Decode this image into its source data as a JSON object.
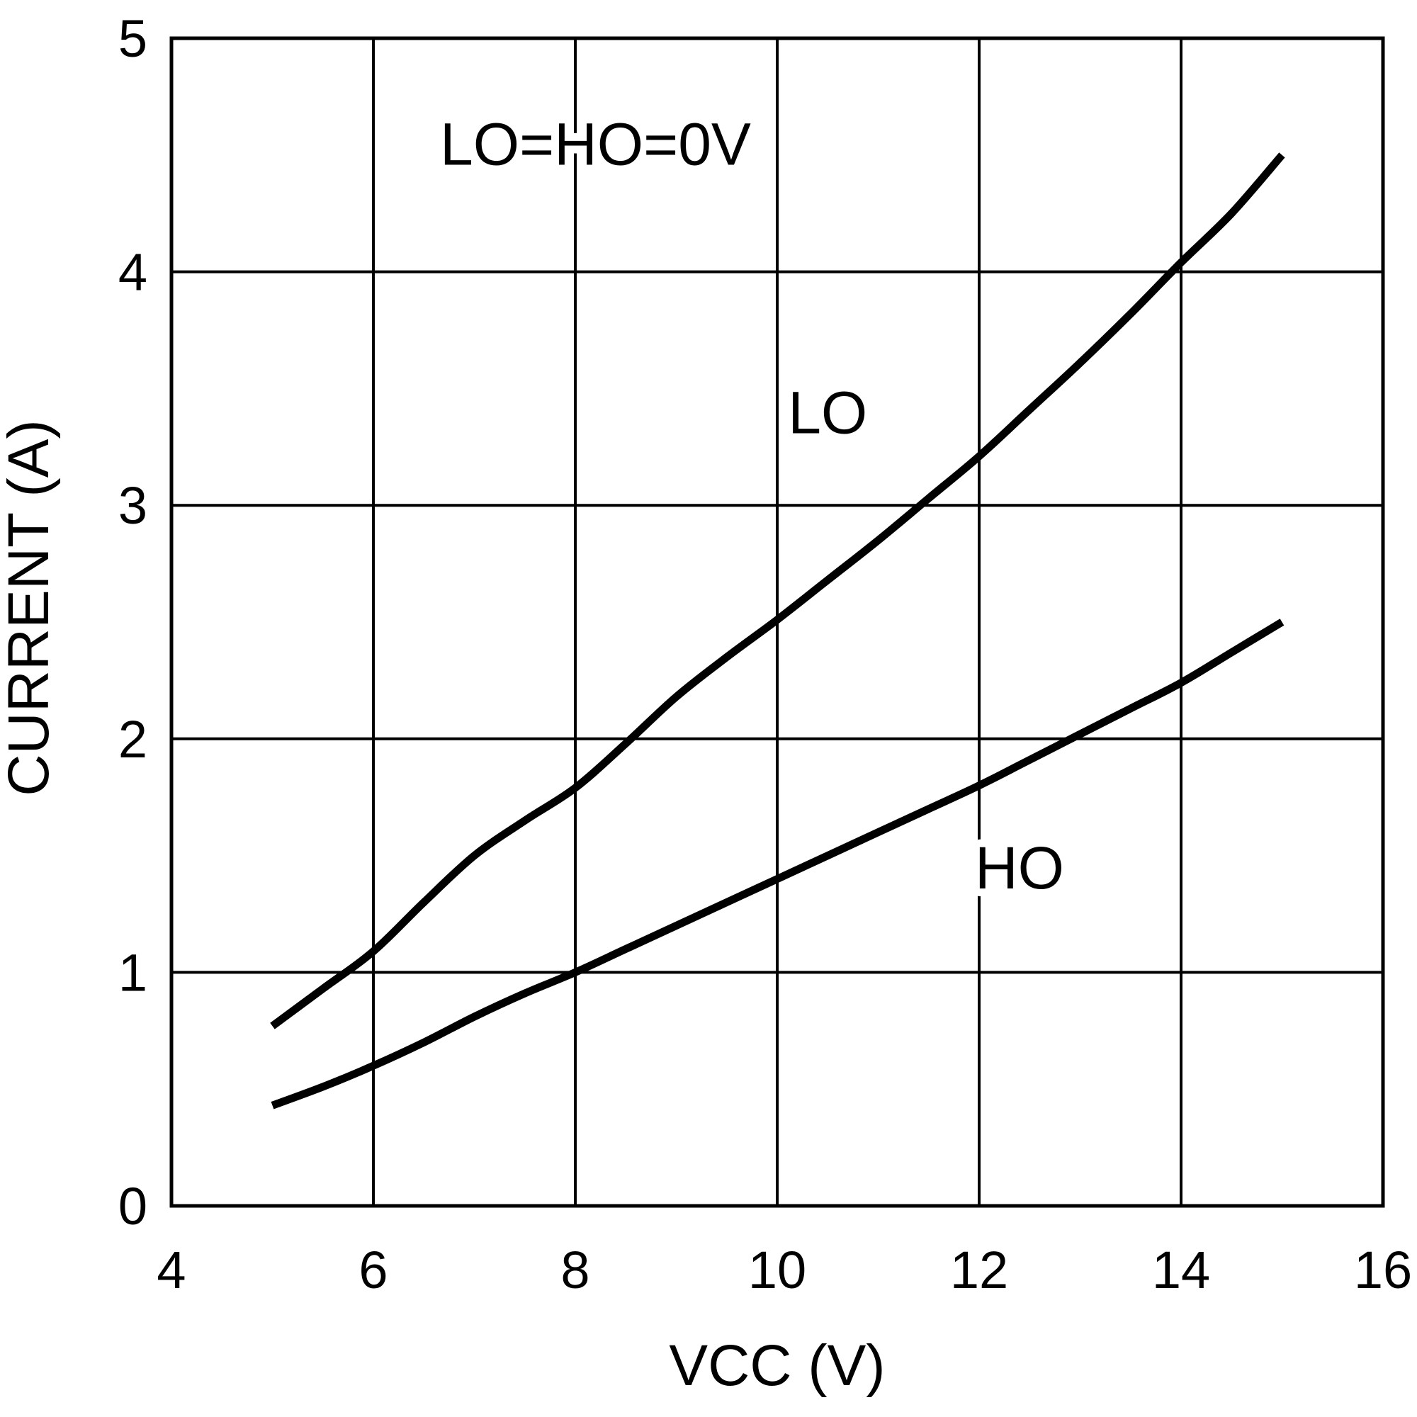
{
  "chart_data": {
    "type": "line",
    "title": "",
    "xlabel": "VCC (V)",
    "ylabel": "CURRENT (A)",
    "xlim": [
      4,
      16
    ],
    "ylim": [
      0,
      5
    ],
    "xticks": [
      4,
      6,
      8,
      10,
      12,
      14,
      16
    ],
    "yticks": [
      0,
      1,
      2,
      3,
      4,
      5
    ],
    "grid": true,
    "series": [
      {
        "name": "LO",
        "x": [
          5,
          5.5,
          6,
          6.5,
          7,
          7.5,
          8,
          8.5,
          9,
          9.5,
          10,
          10.5,
          11,
          11.5,
          12,
          12.5,
          13,
          13.5,
          14,
          14.5,
          15
        ],
        "values": [
          0.77,
          0.93,
          1.09,
          1.3,
          1.5,
          1.65,
          1.79,
          1.98,
          2.18,
          2.35,
          2.51,
          2.68,
          2.85,
          3.03,
          3.21,
          3.41,
          3.61,
          3.82,
          4.04,
          4.25,
          4.5
        ]
      },
      {
        "name": "HO",
        "x": [
          5,
          5.5,
          6,
          6.5,
          7,
          7.5,
          8,
          8.5,
          9,
          9.5,
          10,
          10.5,
          11,
          11.5,
          12,
          12.5,
          13,
          13.5,
          14,
          14.5,
          15
        ],
        "values": [
          0.43,
          0.51,
          0.6,
          0.7,
          0.81,
          0.91,
          1.0,
          1.1,
          1.2,
          1.3,
          1.4,
          1.5,
          1.6,
          1.7,
          1.8,
          1.91,
          2.02,
          2.13,
          2.24,
          2.37,
          2.5
        ]
      }
    ],
    "annotations": [
      {
        "text": "LO=HO=0V",
        "x": 8.2,
        "y": 4.55
      },
      {
        "text": "LO",
        "x": 10.5,
        "y": 3.4
      },
      {
        "text": "HO",
        "x": 12.4,
        "y": 1.45
      }
    ]
  }
}
